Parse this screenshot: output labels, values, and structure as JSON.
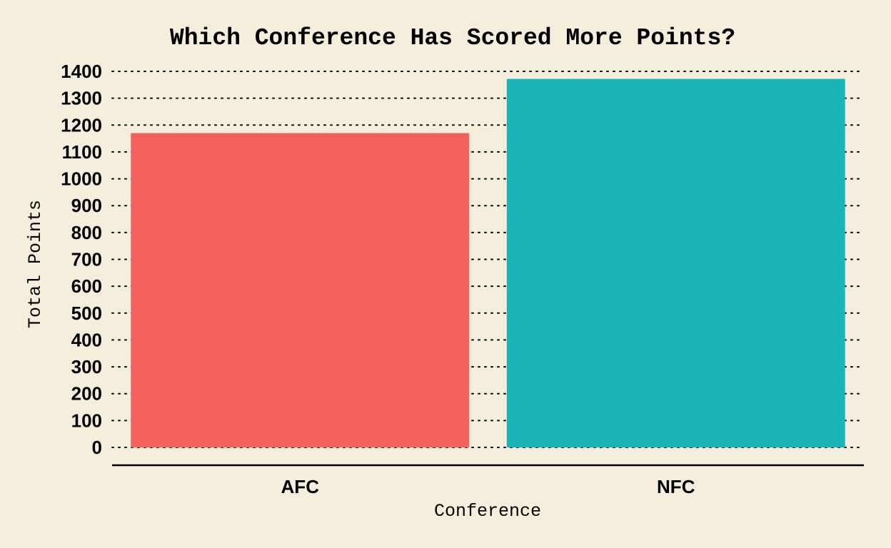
{
  "chart_data": {
    "type": "bar",
    "title": "Which Conference Has Scored More Points?",
    "xlabel": "Conference",
    "ylabel": "Total Points",
    "categories": [
      "AFC",
      "NFC"
    ],
    "values": [
      1170,
      1372
    ],
    "colors": [
      "#F3615D",
      "#1AB3B8"
    ],
    "ylim": [
      0,
      1400
    ],
    "yticks": [
      0,
      100,
      200,
      300,
      400,
      500,
      600,
      700,
      800,
      900,
      1000,
      1100,
      1200,
      1300,
      1400
    ],
    "grid": true,
    "legend": "none"
  },
  "colors": {
    "background": "#F5EEDD"
  }
}
